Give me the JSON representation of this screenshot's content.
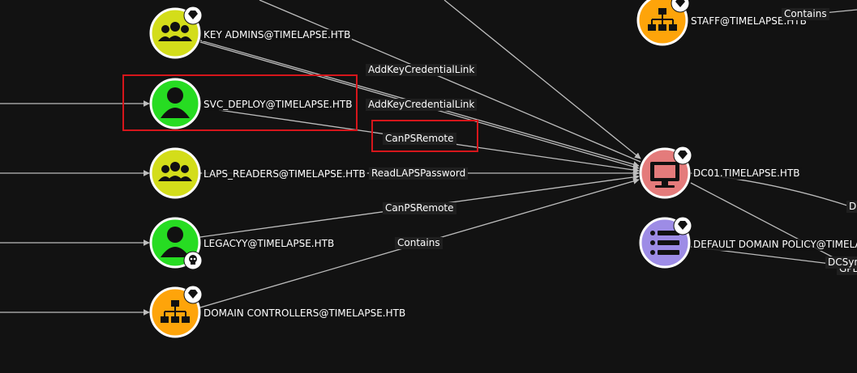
{
  "colors": {
    "background": "#121212",
    "edge": "#bdbdbd",
    "highlight": "#d6161b",
    "group_node": "#d3dd1a",
    "user_node": "#27dc22",
    "ou_node": "#fea40a",
    "computer_node": "#e47b7b",
    "gpo_node": "#9d8ce6"
  },
  "nodes": {
    "key_admins": {
      "label": "KEY ADMINS@TIMELAPSE.HTB",
      "icon": "group-icon",
      "badge": "gem-icon"
    },
    "svc_deploy": {
      "label": "SVC_DEPLOY@TIMELAPSE.HTB",
      "icon": "user-icon"
    },
    "laps_readers": {
      "label": "LAPS_READERS@TIMELAPSE.HTB",
      "icon": "group-icon"
    },
    "legacyy": {
      "label": "LEGACYY@TIMELAPSE.HTB",
      "icon": "user-icon",
      "badge": "skull-icon"
    },
    "domain_controllers": {
      "label": "DOMAIN CONTROLLERS@TIMELAPSE.HTB",
      "icon": "ou-icon",
      "badge": "gem-icon"
    },
    "staff": {
      "label": "STAFF@TIMELAPSE.HTB",
      "icon": "ou-icon",
      "badge": "gem-icon"
    },
    "dc01": {
      "label": "DC01.TIMELAPSE.HTB",
      "icon": "computer-icon",
      "badge": "gem-icon"
    },
    "default_domain_policy": {
      "label": "DEFAULT DOMAIN POLICY@TIMELA",
      "icon": "gpo-list-icon",
      "badge": "gem-icon"
    }
  },
  "edges": {
    "addkey_1": "AddKeyCredentialLink",
    "addkey_2": "AddKeyCredentialLink",
    "canpsremote_1": "CanPSRemote",
    "readlaps": "ReadLAPSPassword",
    "canpsremote_2": "CanPSRemote",
    "contains_1": "Contains",
    "contains_top": "Contains",
    "dcsync": "DCSyn",
    "gplink": "GPL",
    "d_partial": "D"
  }
}
